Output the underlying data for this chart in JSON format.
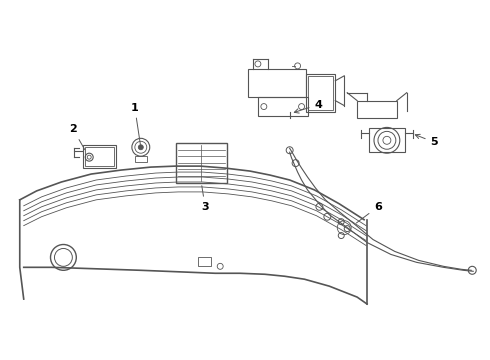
{
  "background_color": "#ffffff",
  "line_color": "#555555",
  "label_color": "#000000",
  "figsize": [
    4.9,
    3.6
  ],
  "dpi": 100
}
